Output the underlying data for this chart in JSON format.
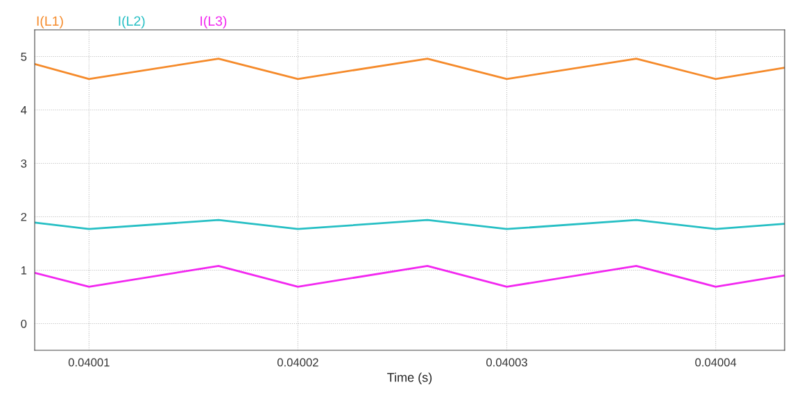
{
  "chart_data": {
    "type": "line",
    "xlabel": "Time (s)",
    "xlim": [
      0.0400074,
      0.0400433
    ],
    "ylim": [
      -0.5,
      5.5
    ],
    "xticks": [
      0.04001,
      0.04002,
      0.04003,
      0.04004
    ],
    "yticks": [
      0,
      1,
      2,
      3,
      4,
      5
    ],
    "grid": true,
    "legend": "top left",
    "line_style": "solid",
    "marker": "none",
    "series": [
      {
        "name": "I(L1)",
        "color": "#f58a2a",
        "x": [
          0.0400074,
          0.04001,
          0.0400162,
          0.04002,
          0.0400262,
          0.04003,
          0.0400362,
          0.04004,
          0.0400433
        ],
        "values": [
          4.86,
          4.58,
          4.96,
          4.58,
          4.96,
          4.58,
          4.96,
          4.58,
          4.79
        ]
      },
      {
        "name": "I(L2)",
        "color": "#26bfc4",
        "x": [
          0.0400074,
          0.04001,
          0.0400162,
          0.04002,
          0.0400262,
          0.04003,
          0.0400362,
          0.04004,
          0.0400433
        ],
        "values": [
          1.89,
          1.77,
          1.94,
          1.77,
          1.94,
          1.77,
          1.94,
          1.77,
          1.87
        ]
      },
      {
        "name": "I(L3)",
        "color": "#f227f0",
        "x": [
          0.0400074,
          0.04001,
          0.0400162,
          0.04002,
          0.0400262,
          0.04003,
          0.0400362,
          0.04004,
          0.0400433
        ],
        "values": [
          0.95,
          0.69,
          1.08,
          0.69,
          1.08,
          0.69,
          1.08,
          0.69,
          0.9
        ]
      }
    ]
  }
}
